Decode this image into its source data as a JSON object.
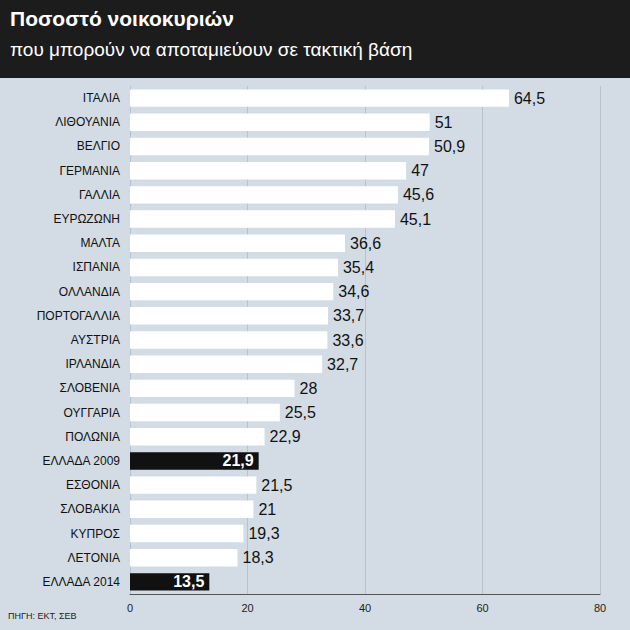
{
  "chart_data": {
    "type": "bar",
    "orientation": "horizontal",
    "title": "Ποσοστό νοικοκυριών",
    "subtitle": "που μπορούν να αποταμιεύουν σε τακτική βάση",
    "source": "ΠΗΓΗ: ΕΚΤ, ΣΕΒ",
    "categories": [
      "ΙΤΑΛΙΑ",
      "ΛΙΘΟΥΑΝΙΑ",
      "ΒΕΛΓΙΟ",
      "ΓΕΡΜΑΝΙΑ",
      "ΓΑΛΛΙΑ",
      "ΕΥΡΩΖΩΝΗ",
      "ΜΑΛΤΑ",
      "ΙΣΠΑΝΙΑ",
      "ΟΛΛΑΝΔΙΑ",
      "ΠΟΡΤΟΓΑΛΛΙΑ",
      "ΑΥΣΤΡΙΑ",
      "ΙΡΛΑΝΔΙΑ",
      "ΣΛΟΒΕΝΙΑ",
      "ΟΥΓΓΑΡΙΑ",
      "ΠΟΛΩΝΙΑ",
      "ΕΛΛΑΔΑ 2009",
      "ΕΣΘΟΝΙΑ",
      "ΣΛΟΒΑΚΙΑ",
      "ΚΥΠΡΟΣ",
      "ΛΕΤΟΝΙΑ",
      "ΕΛΛΑΔΑ 2014"
    ],
    "values": [
      64.5,
      51,
      50.9,
      47,
      45.6,
      45.1,
      36.6,
      35.4,
      34.6,
      33.7,
      33.6,
      32.7,
      28,
      25.5,
      22.9,
      21.9,
      21.5,
      21,
      19.3,
      18.3,
      13.5
    ],
    "value_labels": [
      "64,5",
      "51",
      "50,9",
      "47",
      "45,6",
      "45,1",
      "36,6",
      "35,4",
      "34,6",
      "33,7",
      "33,6",
      "32,7",
      "28",
      "25,5",
      "22,9",
      "21,9",
      "21,5",
      "21",
      "19,3",
      "18,3",
      "13,5"
    ],
    "colors": [
      "#ffffff",
      "#ffffff",
      "#ffffff",
      "#ffffff",
      "#ffffff",
      "#ffffff",
      "#ffffff",
      "#ffffff",
      "#ffffff",
      "#ffffff",
      "#ffffff",
      "#ffffff",
      "#ffffff",
      "#ffffff",
      "#ffffff",
      "#111111",
      "#ffffff",
      "#ffffff",
      "#ffffff",
      "#ffffff",
      "#111111"
    ],
    "xlim": [
      0,
      80
    ],
    "xticks": [
      0,
      20,
      40,
      60,
      80
    ],
    "grid": true,
    "data_labels": true
  }
}
